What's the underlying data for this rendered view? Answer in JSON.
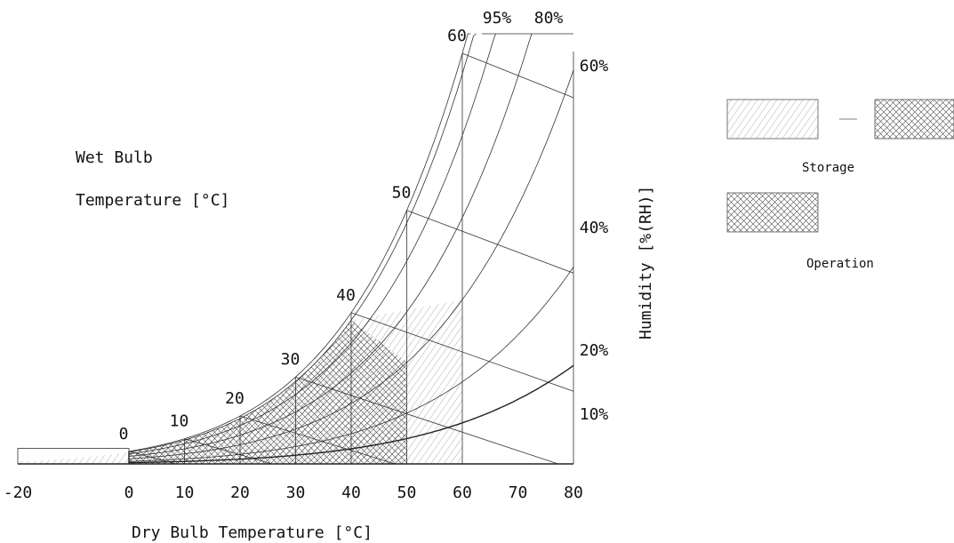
{
  "chart_data": {
    "type": "psychrometric",
    "title": "",
    "xlabel": "Dry Bulb Temperature [°C]",
    "ylabel": "Humidity [%(RH)]",
    "wet_bulb_title": [
      "Wet Bulb",
      "Temperature [°C]"
    ],
    "x_ticks": [
      -20,
      0,
      10,
      20,
      30,
      40,
      50,
      60,
      70,
      80
    ],
    "x_tick_labels": [
      "-20",
      "0",
      "10",
      "20",
      "30",
      "40",
      "50",
      "60",
      "70",
      "80"
    ],
    "xlim": [
      -20,
      80
    ],
    "rh_curves": [
      {
        "rh": 100,
        "label": ""
      },
      {
        "rh": 95,
        "label": "95%"
      },
      {
        "rh": 80,
        "label": "80%"
      },
      {
        "rh": 60,
        "label": "60%"
      },
      {
        "rh": 40,
        "label": "40%"
      },
      {
        "rh": 20,
        "label": "20%"
      },
      {
        "rh": 10,
        "label": "10%"
      }
    ],
    "wet_bulb_lines": [
      {
        "t": 0,
        "label": "0"
      },
      {
        "t": 10,
        "label": "10"
      },
      {
        "t": 20,
        "label": "20"
      },
      {
        "t": 30,
        "label": "30"
      },
      {
        "t": 40,
        "label": "40"
      },
      {
        "t": 50,
        "label": "50"
      },
      {
        "t": 60,
        "label": "60"
      }
    ],
    "regions": [
      {
        "name": "Storage",
        "dry_bulb_range": [
          -20,
          60
        ],
        "max_wet_bulb": 40,
        "rh_range": [
          5,
          95
        ]
      },
      {
        "name": "Operation",
        "dry_bulb_range": [
          0,
          50
        ],
        "max_wet_bulb": 40,
        "rh_range": [
          5,
          95
        ]
      }
    ],
    "legend": {
      "position": "right",
      "entries": [
        "Storage",
        "Operation"
      ]
    }
  }
}
